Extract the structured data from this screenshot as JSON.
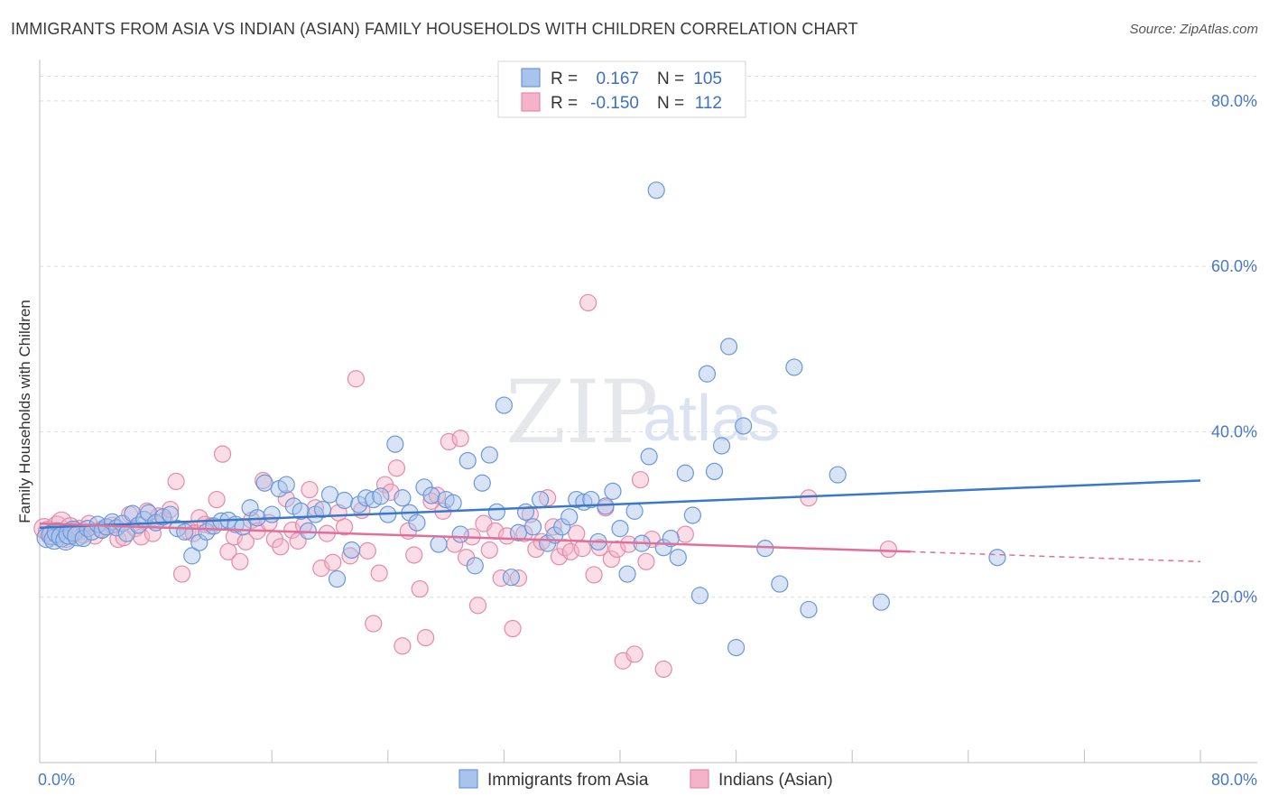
{
  "header": {
    "title": "IMMIGRANTS FROM ASIA VS INDIAN (ASIAN) FAMILY HOUSEHOLDS WITH CHILDREN CORRELATION CHART",
    "source": "Source: ZipAtlas.com"
  },
  "watermark": {
    "zip": "ZIP",
    "atlas": "atlas"
  },
  "legend": {
    "r_label": "R =",
    "n_label": "N =",
    "series": [
      {
        "r": "0.167",
        "n": "105"
      },
      {
        "r": "-0.150",
        "n": "112"
      }
    ]
  },
  "colors": {
    "blue_fill": "#a9c4ec",
    "blue_stroke": "#6a97d8",
    "blue_line": "#3b78c8",
    "pink_fill": "#f4b3c8",
    "pink_stroke": "#e58aaa",
    "pink_line": "#e06f9a",
    "grid": "#dddddd",
    "tick_label": "#4a78c2"
  },
  "chart_data": {
    "type": "scatter",
    "title": "IMMIGRANTS FROM ASIA VS INDIAN (ASIAN) FAMILY HOUSEHOLDS WITH CHILDREN CORRELATION CHART",
    "xlabel": "",
    "ylabel": "Family Households with Children",
    "xlim": [
      0,
      80
    ],
    "ylim": [
      0,
      85
    ],
    "x_tick_labels": [
      "0.0%",
      "80.0%"
    ],
    "y_ticks": [
      20,
      40,
      60,
      80
    ],
    "y_tick_labels": [
      "20.0%",
      "40.0%",
      "60.0%",
      "80.0%"
    ],
    "grid": true,
    "legend_position": "top-center",
    "series": [
      {
        "name": "Immigrants from Asia",
        "trend": {
          "x0": 0,
          "y0": 28.4,
          "x1": 80,
          "y1": 34.1
        },
        "points": [
          [
            0.5,
            27.2
          ],
          [
            0.8,
            27.5
          ],
          [
            1.0,
            27.0
          ],
          [
            1.2,
            27.8
          ],
          [
            1.5,
            27.3
          ],
          [
            1.8,
            26.9
          ],
          [
            2.0,
            27.6
          ],
          [
            2.3,
            28.0
          ],
          [
            2.6,
            27.4
          ],
          [
            3.0,
            27.1
          ],
          [
            3.3,
            28.3
          ],
          [
            3.6,
            27.9
          ],
          [
            4.0,
            28.8
          ],
          [
            4.3,
            28.1
          ],
          [
            4.6,
            28.5
          ],
          [
            5.0,
            29.1
          ],
          [
            5.3,
            28.4
          ],
          [
            5.7,
            28.9
          ],
          [
            6.0,
            27.7
          ],
          [
            6.4,
            30.1
          ],
          [
            6.8,
            28.7
          ],
          [
            7.2,
            29.4
          ],
          [
            7.5,
            30.2
          ],
          [
            8.0,
            29.0
          ],
          [
            8.5,
            29.7
          ],
          [
            9.0,
            30.0
          ],
          [
            9.5,
            28.3
          ],
          [
            10.0,
            27.9
          ],
          [
            10.5,
            25.0
          ],
          [
            11.0,
            26.6
          ],
          [
            11.5,
            27.9
          ],
          [
            12.0,
            28.6
          ],
          [
            12.5,
            29.2
          ],
          [
            13.0,
            29.3
          ],
          [
            13.5,
            28.8
          ],
          [
            14.0,
            28.5
          ],
          [
            14.5,
            30.8
          ],
          [
            15.0,
            29.6
          ],
          [
            15.5,
            33.8
          ],
          [
            16.0,
            30.0
          ],
          [
            16.5,
            33.1
          ],
          [
            17.0,
            33.6
          ],
          [
            17.5,
            31.0
          ],
          [
            18.0,
            30.4
          ],
          [
            18.5,
            28.0
          ],
          [
            19.0,
            30.0
          ],
          [
            19.5,
            30.6
          ],
          [
            20.0,
            32.4
          ],
          [
            20.5,
            22.2
          ],
          [
            21.0,
            31.7
          ],
          [
            21.5,
            25.7
          ],
          [
            22.0,
            31.2
          ],
          [
            22.5,
            32.0
          ],
          [
            23.0,
            31.8
          ],
          [
            23.5,
            32.2
          ],
          [
            24.0,
            30.0
          ],
          [
            24.5,
            38.5
          ],
          [
            25.0,
            32.0
          ],
          [
            25.5,
            30.2
          ],
          [
            26.0,
            29.0
          ],
          [
            26.5,
            33.3
          ],
          [
            27.0,
            32.3
          ],
          [
            27.5,
            26.4
          ],
          [
            28.0,
            31.8
          ],
          [
            28.5,
            31.4
          ],
          [
            29.0,
            27.6
          ],
          [
            29.5,
            36.5
          ],
          [
            30.0,
            23.8
          ],
          [
            30.5,
            33.8
          ],
          [
            31.0,
            37.2
          ],
          [
            31.5,
            30.3
          ],
          [
            32.0,
            43.2
          ],
          [
            32.5,
            22.4
          ],
          [
            33.0,
            27.8
          ],
          [
            33.5,
            30.3
          ],
          [
            34.0,
            28.5
          ],
          [
            34.5,
            31.8
          ],
          [
            35.0,
            26.5
          ],
          [
            35.5,
            27.5
          ],
          [
            36.0,
            28.5
          ],
          [
            36.5,
            29.7
          ],
          [
            37.0,
            31.8
          ],
          [
            37.5,
            31.5
          ],
          [
            38.0,
            31.8
          ],
          [
            38.5,
            26.7
          ],
          [
            39.0,
            31.0
          ],
          [
            39.5,
            32.8
          ],
          [
            40.0,
            28.3
          ],
          [
            40.5,
            22.8
          ],
          [
            41.0,
            30.4
          ],
          [
            41.5,
            26.5
          ],
          [
            42.0,
            37.0
          ],
          [
            42.5,
            69.2
          ],
          [
            43.0,
            26.0
          ],
          [
            43.5,
            27.1
          ],
          [
            44.0,
            24.8
          ],
          [
            44.5,
            35.0
          ],
          [
            45.0,
            29.9
          ],
          [
            45.5,
            20.2
          ],
          [
            46.0,
            47.0
          ],
          [
            46.5,
            35.2
          ],
          [
            47.0,
            38.3
          ],
          [
            47.5,
            50.3
          ],
          [
            48.0,
            13.9
          ],
          [
            48.5,
            40.7
          ],
          [
            50.0,
            25.9
          ],
          [
            51.0,
            21.6
          ],
          [
            52.0,
            47.8
          ],
          [
            53.0,
            18.5
          ],
          [
            55.0,
            34.8
          ],
          [
            58.0,
            19.4
          ],
          [
            66.0,
            24.8
          ]
        ]
      },
      {
        "name": "Indians (Asian)",
        "trend": {
          "x0": 0,
          "y0": 28.9,
          "x1": 60,
          "y1": 25.5
        },
        "trend_dashed": {
          "x0": 60,
          "y0": 25.5,
          "x1": 80,
          "y1": 24.3
        },
        "points": [
          [
            0.3,
            28.3
          ],
          [
            0.6,
            28.0
          ],
          [
            0.9,
            27.6
          ],
          [
            1.2,
            28.6
          ],
          [
            1.5,
            29.1
          ],
          [
            1.8,
            27.2
          ],
          [
            2.1,
            28.4
          ],
          [
            2.4,
            27.9
          ],
          [
            2.7,
            28.1
          ],
          [
            3.0,
            27.5
          ],
          [
            3.4,
            28.9
          ],
          [
            3.8,
            27.4
          ],
          [
            4.2,
            28.2
          ],
          [
            4.6,
            28.5
          ],
          [
            5.0,
            28.7
          ],
          [
            5.4,
            27.0
          ],
          [
            5.8,
            27.2
          ],
          [
            6.2,
            30.0
          ],
          [
            6.6,
            28.3
          ],
          [
            7.0,
            27.3
          ],
          [
            7.4,
            30.4
          ],
          [
            7.8,
            27.7
          ],
          [
            8.2,
            29.8
          ],
          [
            8.6,
            29.3
          ],
          [
            9.0,
            30.6
          ],
          [
            9.4,
            34.0
          ],
          [
            9.8,
            22.8
          ],
          [
            10.2,
            28.0
          ],
          [
            10.6,
            27.7
          ],
          [
            11.0,
            29.6
          ],
          [
            11.4,
            28.8
          ],
          [
            11.8,
            28.6
          ],
          [
            12.2,
            31.8
          ],
          [
            12.6,
            37.3
          ],
          [
            13.0,
            25.5
          ],
          [
            13.4,
            27.3
          ],
          [
            13.8,
            24.3
          ],
          [
            14.2,
            26.7
          ],
          [
            14.6,
            29.3
          ],
          [
            15.0,
            28.0
          ],
          [
            15.4,
            34.1
          ],
          [
            15.8,
            29.0
          ],
          [
            16.2,
            27.0
          ],
          [
            16.6,
            26.1
          ],
          [
            17.0,
            31.9
          ],
          [
            17.4,
            28.1
          ],
          [
            17.8,
            26.8
          ],
          [
            18.2,
            28.7
          ],
          [
            18.6,
            33.0
          ],
          [
            19.0,
            30.8
          ],
          [
            19.4,
            23.5
          ],
          [
            19.8,
            27.7
          ],
          [
            20.2,
            24.2
          ],
          [
            20.6,
            30.2
          ],
          [
            21.0,
            28.5
          ],
          [
            21.4,
            25.0
          ],
          [
            21.8,
            46.4
          ],
          [
            22.2,
            30.5
          ],
          [
            22.6,
            25.6
          ],
          [
            23.0,
            16.8
          ],
          [
            23.4,
            22.9
          ],
          [
            23.8,
            33.6
          ],
          [
            24.2,
            32.7
          ],
          [
            24.6,
            35.6
          ],
          [
            25.0,
            14.1
          ],
          [
            25.4,
            28.0
          ],
          [
            25.8,
            25.1
          ],
          [
            26.2,
            21.0
          ],
          [
            26.6,
            15.1
          ],
          [
            27.0,
            31.6
          ],
          [
            27.4,
            32.3
          ],
          [
            27.8,
            30.4
          ],
          [
            28.2,
            38.8
          ],
          [
            28.6,
            26.4
          ],
          [
            29.0,
            39.2
          ],
          [
            29.4,
            24.8
          ],
          [
            29.8,
            27.3
          ],
          [
            30.2,
            19.0
          ],
          [
            30.6,
            28.9
          ],
          [
            31.0,
            25.7
          ],
          [
            31.4,
            28.0
          ],
          [
            31.8,
            22.3
          ],
          [
            32.2,
            27.4
          ],
          [
            32.6,
            16.2
          ],
          [
            33.0,
            22.3
          ],
          [
            33.4,
            27.7
          ],
          [
            33.8,
            30.0
          ],
          [
            34.2,
            25.8
          ],
          [
            34.6,
            26.7
          ],
          [
            35.0,
            32.0
          ],
          [
            35.4,
            28.5
          ],
          [
            35.8,
            24.9
          ],
          [
            36.2,
            26.0
          ],
          [
            36.6,
            25.5
          ],
          [
            37.0,
            27.7
          ],
          [
            37.4,
            25.9
          ],
          [
            37.8,
            55.6
          ],
          [
            38.2,
            22.7
          ],
          [
            38.6,
            26.0
          ],
          [
            39.0,
            30.8
          ],
          [
            39.4,
            24.6
          ],
          [
            39.8,
            25.8
          ],
          [
            40.2,
            12.3
          ],
          [
            40.6,
            26.4
          ],
          [
            41.0,
            13.1
          ],
          [
            41.4,
            34.2
          ],
          [
            41.8,
            24.3
          ],
          [
            42.2,
            27.0
          ],
          [
            43.0,
            11.3
          ],
          [
            44.5,
            27.6
          ],
          [
            53.0,
            32.0
          ],
          [
            58.5,
            25.8
          ]
        ]
      }
    ]
  }
}
